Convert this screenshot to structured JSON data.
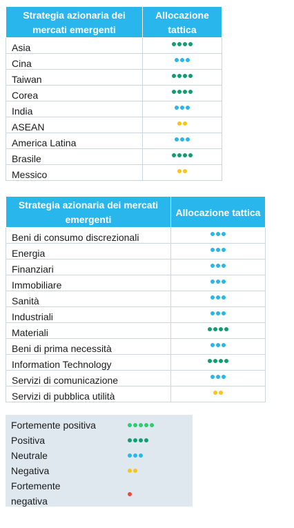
{
  "colors": {
    "header_bg": "#29b6ec",
    "strong_positive": "#2ecc71",
    "positive": "#0e9f6e",
    "neutral": "#29b6ec",
    "negative": "#f5c518",
    "strong_negative": "#e84a3c"
  },
  "table_regions": {
    "header_col1": "Strategia azionaria dei mercati emergenti",
    "header_col2": "Allocazione tattica",
    "rows": [
      {
        "label": "Asia",
        "dots": 4,
        "color": "#0e9f6e"
      },
      {
        "label": "Cina",
        "dots": 3,
        "color": "#29b6ec"
      },
      {
        "label": "Taiwan",
        "dots": 4,
        "color": "#0e9f6e"
      },
      {
        "label": "Corea",
        "dots": 4,
        "color": "#0e9f6e"
      },
      {
        "label": "India",
        "dots": 3,
        "color": "#29b6ec"
      },
      {
        "label": "ASEAN",
        "dots": 2,
        "color": "#f5c518"
      },
      {
        "label": "America Latina",
        "dots": 3,
        "color": "#29b6ec"
      },
      {
        "label": "Brasile",
        "dots": 4,
        "color": "#0e9f6e"
      },
      {
        "label": "Messico",
        "dots": 2,
        "color": "#f5c518"
      }
    ]
  },
  "table_sectors": {
    "header_col1": "Strategia azionaria dei mercati emergenti",
    "header_col2": "Allocazione tattica",
    "rows": [
      {
        "label": "Beni di consumo discrezionali",
        "dots": 3,
        "color": "#29b6ec"
      },
      {
        "label": "Energia",
        "dots": 3,
        "color": "#29b6ec"
      },
      {
        "label": "Finanziari",
        "dots": 3,
        "color": "#29b6ec"
      },
      {
        "label": "Immobiliare",
        "dots": 3,
        "color": "#29b6ec"
      },
      {
        "label": "Sanità",
        "dots": 3,
        "color": "#29b6ec"
      },
      {
        "label": "Industriali",
        "dots": 3,
        "color": "#29b6ec"
      },
      {
        "label": "Materiali",
        "dots": 4,
        "color": "#0e9f6e"
      },
      {
        "label": "Beni di prima necessità",
        "dots": 3,
        "color": "#29b6ec"
      },
      {
        "label": "Information Technology",
        "dots": 4,
        "color": "#0e9f6e"
      },
      {
        "label": "Servizi di comunicazione",
        "dots": 3,
        "color": "#29b6ec"
      },
      {
        "label": "Servizi di pubblica utilità",
        "dots": 2,
        "color": "#f5c518"
      }
    ]
  },
  "legend": [
    {
      "label": "Fortemente positiva",
      "dots": 5,
      "color": "#2ecc71"
    },
    {
      "label": "Positiva",
      "dots": 4,
      "color": "#0e9f6e"
    },
    {
      "label": "Neutrale",
      "dots": 3,
      "color": "#29b6ec"
    },
    {
      "label": "Negativa",
      "dots": 2,
      "color": "#f5c518"
    },
    {
      "label": "Fortemente negativa",
      "dots": 1,
      "color": "#e84a3c"
    }
  ]
}
